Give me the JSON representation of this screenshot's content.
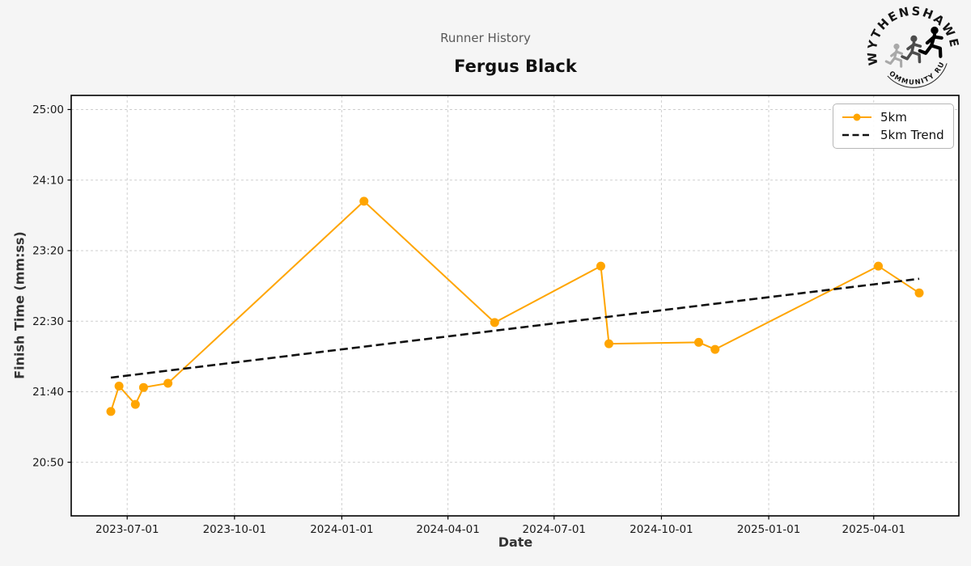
{
  "header": {
    "subtitle": "Runner History",
    "title": "Fergus Black"
  },
  "logo": {
    "arc_top_text": "WYTHENSHAWE",
    "arc_bottom_text": "COMMUNITY RUN"
  },
  "chart_data": {
    "type": "line",
    "title": "Runner History",
    "subtitle": "Fergus Black",
    "xlabel": "Date",
    "ylabel": "Finish Time (mm:ss)",
    "grid": true,
    "legend_position": "upper right",
    "x_ticks": [
      "2023-07-01",
      "2023-10-01",
      "2024-01-01",
      "2024-04-01",
      "2024-07-01",
      "2024-10-01",
      "2025-01-01",
      "2025-04-01"
    ],
    "y_ticks": [
      "25:00",
      "24:10",
      "23:20",
      "22:30",
      "21:40",
      "20:50"
    ],
    "x_range": [
      "2023-05-14",
      "2025-06-13"
    ],
    "y_range_seconds": [
      1212,
      1510
    ],
    "colors": {
      "series": "#FFA500",
      "trend": "#111111",
      "grid": "#cfcfcf",
      "spine": "#000000",
      "figure_bg": "#f5f5f5",
      "plot_bg": "#ffffff"
    },
    "series": [
      {
        "name": "5km",
        "style": "line+markers",
        "color": "#FFA500",
        "points": [
          [
            "2023-06-17",
            "21:26"
          ],
          [
            "2023-06-24",
            "21:44"
          ],
          [
            "2023-07-08",
            "21:31"
          ],
          [
            "2023-07-15",
            "21:43"
          ],
          [
            "2023-08-05",
            "21:46"
          ],
          [
            "2024-01-20",
            "23:55"
          ],
          [
            "2024-05-11",
            "22:29"
          ],
          [
            "2024-08-10",
            "23:09"
          ],
          [
            "2024-08-17",
            "22:14"
          ],
          [
            "2024-11-02",
            "22:15"
          ],
          [
            "2024-11-16",
            "22:10"
          ],
          [
            "2025-04-05",
            "23:09"
          ],
          [
            "2025-05-10",
            "22:50"
          ]
        ]
      },
      {
        "name": "5km Trend",
        "style": "dashed",
        "color": "#111111",
        "points": [
          [
            "2023-06-17",
            "21:50"
          ],
          [
            "2025-05-10",
            "23:00"
          ]
        ]
      }
    ]
  }
}
